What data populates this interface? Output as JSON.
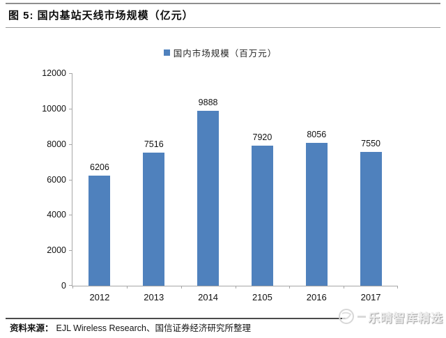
{
  "chart_data": {
    "type": "bar",
    "title": "图 5: 国内基站天线市场规模（亿元）",
    "legend": [
      "国内市场规模（百万元）"
    ],
    "legend_position": "top",
    "categories": [
      "2012",
      "2013",
      "2014",
      "2105",
      "2016",
      "2017"
    ],
    "values": [
      6206,
      7516,
      9888,
      7920,
      8056,
      7550
    ],
    "ylim": [
      0,
      12000
    ],
    "yticks": [
      0,
      2000,
      4000,
      6000,
      8000,
      10000,
      12000
    ],
    "xlabel": "",
    "ylabel": "",
    "grid": false,
    "data_labels": true,
    "bar_color": "#4F81BD",
    "axis_color": "#a6a6a6",
    "label_color": "#111111"
  },
  "source": {
    "prefix": "资料来源：",
    "text": "EJL Wireless Research、国信证券经济研究所整理"
  },
  "watermark": {
    "text": "乐晴智库精选"
  }
}
